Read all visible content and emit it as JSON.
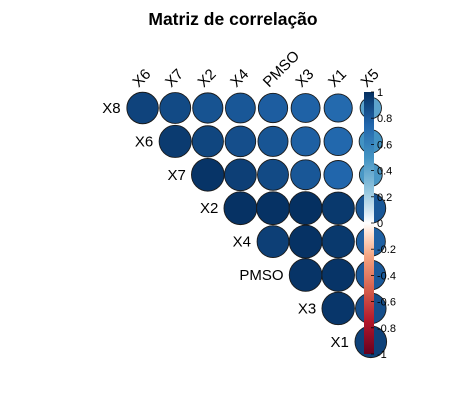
{
  "chart_data": {
    "type": "heatmap",
    "subtype": "correlation-matrix-circles-upper",
    "title": "Matriz de correlação",
    "variables": [
      "X8",
      "X6",
      "X7",
      "X2",
      "X4",
      "PMSO",
      "X3",
      "X1",
      "X5"
    ],
    "columns": [
      "X6",
      "X7",
      "X2",
      "X4",
      "PMSO",
      "X3",
      "X1",
      "X5"
    ],
    "rows": [
      {
        "label": "X8",
        "values": [
          0.91,
          0.88,
          0.84,
          0.82,
          0.79,
          0.77,
          0.73,
          0.42
        ]
      },
      {
        "label": "X6",
        "values": [
          null,
          0.95,
          0.9,
          0.86,
          0.83,
          0.78,
          0.74,
          0.5
        ]
      },
      {
        "label": "X7",
        "values": [
          null,
          null,
          0.98,
          0.93,
          0.88,
          0.82,
          0.75,
          0.48
        ]
      },
      {
        "label": "X2",
        "values": [
          null,
          null,
          null,
          0.99,
          0.99,
          1.0,
          0.96,
          0.82
        ]
      },
      {
        "label": "X4",
        "values": [
          null,
          null,
          null,
          null,
          0.93,
          0.99,
          0.96,
          0.78
        ]
      },
      {
        "label": "PMSO",
        "values": [
          null,
          null,
          null,
          null,
          null,
          0.98,
          0.98,
          0.81
        ]
      },
      {
        "label": "X3",
        "values": [
          null,
          null,
          null,
          null,
          null,
          null,
          0.97,
          0.86
        ]
      },
      {
        "label": "X1",
        "values": [
          null,
          null,
          null,
          null,
          null,
          null,
          null,
          0.92
        ]
      }
    ],
    "colorbar": {
      "range": [
        -1,
        1
      ],
      "ticks": [
        "1",
        "0.8",
        "0.6",
        "0.4",
        "0.2",
        "0",
        "-0.2",
        "-0.4",
        "-0.6",
        "-0.8",
        "-1"
      ],
      "colors": {
        "neg": "#67001F",
        "zero": "#FFFFFF",
        "pos": "#053061"
      }
    },
    "grid": false,
    "legend": "right"
  }
}
